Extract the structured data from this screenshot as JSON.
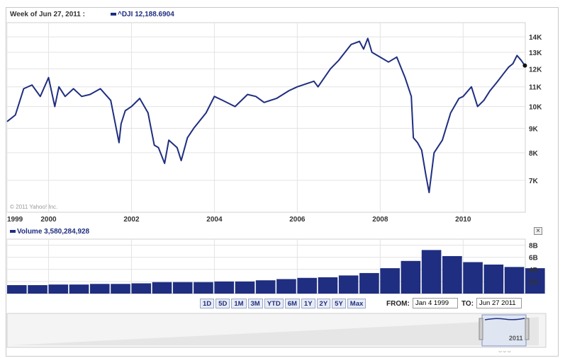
{
  "header": {
    "week_label": "Week of Jun 27, 2011 :",
    "symbol": "^DJI",
    "value": "12,188.6904"
  },
  "copyright": "© 2011 Yahoo! Inc.",
  "volume_legend": {
    "label": "Volume",
    "value": "3,580,284,928"
  },
  "close_label": "×",
  "range_buttons": [
    "1D",
    "5D",
    "1M",
    "3M",
    "YTD",
    "6M",
    "1Y",
    "2Y",
    "5Y",
    "Max"
  ],
  "date_range": {
    "from_label": "FROM:",
    "from_value": "Jan 4 1999",
    "to_label": "TO:",
    "to_value": "Jun 27 2011"
  },
  "navigator": {
    "year_label": "2011",
    "grip": "⌣⌣⌣"
  },
  "colors": {
    "series": "#1f2e80",
    "grid": "#e3e3e3",
    "nav_fill": "#dfe6f2"
  },
  "chart_data": [
    {
      "type": "line",
      "title": "",
      "series": [
        {
          "name": "^DJI",
          "x": [
            1999.0,
            1999.2,
            1999.4,
            1999.6,
            1999.8,
            2000.0,
            2000.15,
            2000.25,
            2000.4,
            2000.6,
            2000.8,
            2001.0,
            2001.25,
            2001.5,
            2001.7,
            2001.75,
            2001.85,
            2002.0,
            2002.2,
            2002.4,
            2002.55,
            2002.65,
            2002.8,
            2002.9,
            2003.1,
            2003.2,
            2003.35,
            2003.5,
            2003.8,
            2004.0,
            2004.2,
            2004.5,
            2004.8,
            2005.0,
            2005.2,
            2005.5,
            2005.8,
            2006.0,
            2006.4,
            2006.5,
            2006.8,
            2007.0,
            2007.3,
            2007.5,
            2007.6,
            2007.7,
            2007.8,
            2008.0,
            2008.2,
            2008.4,
            2008.6,
            2008.75,
            2008.8,
            2008.9,
            2009.0,
            2009.1,
            2009.18,
            2009.3,
            2009.5,
            2009.7,
            2009.9,
            2010.0,
            2010.2,
            2010.35,
            2010.5,
            2010.65,
            2010.8,
            2011.0,
            2011.1,
            2011.2,
            2011.3,
            2011.4,
            2011.49
          ],
          "y": [
            9300,
            9600,
            10900,
            11100,
            10500,
            11500,
            10000,
            11000,
            10500,
            10900,
            10500,
            10600,
            10900,
            10300,
            8400,
            9200,
            9800,
            10000,
            10400,
            9700,
            8300,
            8200,
            7600,
            8500,
            8200,
            7700,
            8600,
            9000,
            9700,
            10500,
            10300,
            10000,
            10600,
            10500,
            10200,
            10400,
            10800,
            11000,
            11300,
            11000,
            12000,
            12500,
            13500,
            13700,
            13200,
            13900,
            13000,
            12700,
            12400,
            12700,
            11500,
            10500,
            8600,
            8400,
            8100,
            7200,
            6600,
            8000,
            8500,
            9700,
            10400,
            10500,
            11000,
            10000,
            10300,
            10800,
            11200,
            11800,
            12100,
            12300,
            12800,
            12500,
            12190
          ]
        }
      ],
      "xlabel": "",
      "ylabel": "",
      "xlim": [
        1999,
        2011.5
      ],
      "ylim": [
        6000,
        15000
      ],
      "y_scale": "log",
      "x_ticks": [
        1999,
        2000,
        2002,
        2004,
        2006,
        2008,
        2010
      ],
      "x_tick_labels": [
        "1999",
        "2000",
        "2002",
        "2004",
        "2006",
        "2008",
        "2010"
      ],
      "y_ticks": [
        7000,
        8000,
        9000,
        10000,
        11000,
        12000,
        13000,
        14000
      ],
      "y_tick_labels": [
        "7K",
        "8K",
        "9K",
        "10K",
        "11K",
        "12K",
        "13K",
        "14K"
      ],
      "grid": true,
      "legend": "top-left"
    },
    {
      "type": "bar",
      "title": "",
      "series": [
        {
          "name": "Volume",
          "x": [
            1999.0,
            1999.5,
            2000.0,
            2000.5,
            2001.0,
            2001.5,
            2002.0,
            2002.5,
            2003.0,
            2003.5,
            2004.0,
            2004.5,
            2005.0,
            2005.5,
            2006.0,
            2006.5,
            2007.0,
            2007.5,
            2008.0,
            2008.5,
            2009.0,
            2009.5,
            2010.0,
            2010.5,
            2011.0,
            2011.5
          ],
          "y": [
            1.4,
            1.4,
            1.5,
            1.5,
            1.6,
            1.6,
            1.7,
            1.9,
            1.9,
            1.9,
            2.0,
            2.0,
            2.2,
            2.4,
            2.6,
            2.7,
            3.0,
            3.4,
            4.2,
            5.4,
            7.2,
            6.2,
            5.2,
            4.8,
            4.4,
            4.2
          ]
        }
      ],
      "xlabel": "",
      "ylabel": "",
      "xlim": [
        1999,
        2011.5
      ],
      "ylim": [
        0,
        9
      ],
      "y_ticks": [
        2,
        4,
        6,
        8
      ],
      "y_tick_labels": [
        "2B",
        "4B",
        "6B",
        "8B"
      ],
      "grid": true
    }
  ]
}
